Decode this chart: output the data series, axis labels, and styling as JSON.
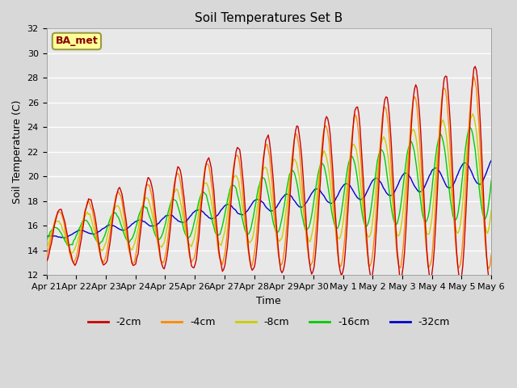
{
  "title": "Soil Temperatures Set B",
  "xlabel": "Time",
  "ylabel": "Soil Temperature (C)",
  "ylim": [
    12,
    32
  ],
  "yticks": [
    12,
    14,
    16,
    18,
    20,
    22,
    24,
    26,
    28,
    30,
    32
  ],
  "plot_bg_color": "#e8e8e8",
  "fig_bg_color": "#d8d8d8",
  "annotation_text": "BA_met",
  "annotation_bg": "#ffff99",
  "annotation_border": "#999944",
  "series_order": [
    "-2cm",
    "-4cm",
    "-8cm",
    "-16cm",
    "-32cm"
  ],
  "series": {
    "-2cm": {
      "color": "#cc0000",
      "zorder": 5
    },
    "-4cm": {
      "color": "#ff8800",
      "zorder": 4
    },
    "-8cm": {
      "color": "#cccc00",
      "zorder": 3
    },
    "-16cm": {
      "color": "#00cc00",
      "zorder": 2
    },
    "-32cm": {
      "color": "#0000cc",
      "zorder": 1
    }
  },
  "x_tick_labels": [
    "Apr 21",
    "Apr 22",
    "Apr 23",
    "Apr 24",
    "Apr 25",
    "Apr 26",
    "Apr 27",
    "Apr 28",
    "Apr 29",
    "Apr 30",
    "May 1",
    "May 2",
    "May 3",
    "May 4",
    "May 5",
    "May 6"
  ],
  "num_days": 15,
  "pts_per_day": 24
}
